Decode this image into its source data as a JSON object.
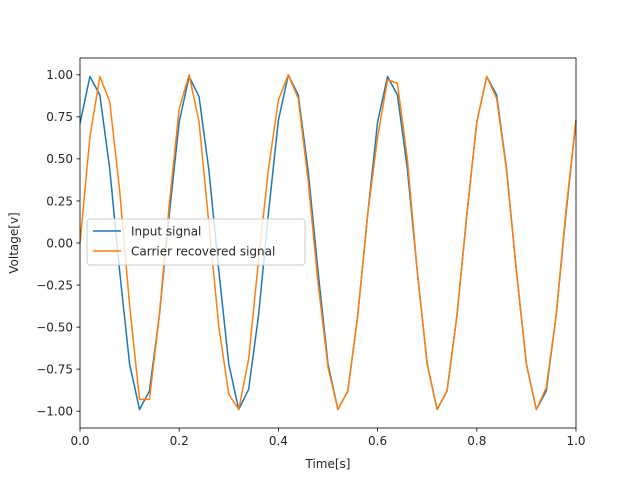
{
  "chart_data": {
    "type": "line",
    "title": "",
    "xlabel": "Time[s]",
    "ylabel": "Voltage[v]",
    "xlim": [
      0,
      1
    ],
    "ylim": [
      -1.1,
      1.1
    ],
    "xticks": [
      0,
      0.2,
      0.4,
      0.6,
      0.8,
      1.0
    ],
    "xtick_labels": [
      "0.0",
      "0.2",
      "0.4",
      "0.6",
      "0.8",
      "1.0"
    ],
    "yticks": [
      -1.0,
      -0.75,
      -0.5,
      -0.25,
      0.0,
      0.25,
      0.5,
      0.75,
      1.0
    ],
    "ytick_labels": [
      "−1.00",
      "−0.75",
      "−0.50",
      "−0.25",
      "0.00",
      "0.25",
      "0.50",
      "0.75",
      "1.00"
    ],
    "grid": false,
    "legend_position": "center-left",
    "series": [
      {
        "name": "Input signal",
        "color": "#1f77b4",
        "x": [
          0,
          0.02,
          0.04,
          0.06,
          0.08,
          0.1,
          0.12,
          0.14,
          0.16,
          0.18,
          0.2,
          0.22,
          0.24,
          0.26,
          0.28,
          0.3,
          0.32,
          0.34,
          0.36,
          0.38,
          0.4,
          0.42,
          0.44,
          0.46,
          0.48,
          0.5,
          0.52,
          0.54,
          0.56,
          0.58,
          0.6,
          0.62,
          0.64,
          0.66,
          0.68,
          0.7,
          0.72,
          0.74,
          0.76,
          0.78,
          0.8,
          0.82,
          0.84,
          0.86,
          0.88,
          0.9,
          0.92,
          0.94,
          0.96,
          0.98,
          1.0
        ],
        "y": [
          0.71,
          0.99,
          0.88,
          0.44,
          -0.17,
          -0.72,
          -0.99,
          -0.88,
          -0.43,
          0.17,
          0.72,
          0.99,
          0.87,
          0.43,
          -0.17,
          -0.72,
          -0.99,
          -0.87,
          -0.43,
          0.18,
          0.73,
          1.0,
          0.88,
          0.43,
          -0.17,
          -0.72,
          -0.99,
          -0.88,
          -0.43,
          0.17,
          0.72,
          0.99,
          0.88,
          0.44,
          -0.17,
          -0.72,
          -0.99,
          -0.88,
          -0.43,
          0.17,
          0.72,
          0.99,
          0.88,
          0.44,
          -0.17,
          -0.72,
          -0.99,
          -0.88,
          -0.43,
          0.18,
          0.73
        ]
      },
      {
        "name": "Carrier recovered signal",
        "color": "#ff7f0e",
        "x": [
          0,
          0.02,
          0.04,
          0.06,
          0.08,
          0.1,
          0.12,
          0.14,
          0.16,
          0.18,
          0.2,
          0.22,
          0.24,
          0.26,
          0.28,
          0.3,
          0.32,
          0.34,
          0.36,
          0.38,
          0.4,
          0.42,
          0.44,
          0.46,
          0.48,
          0.5,
          0.52,
          0.54,
          0.56,
          0.58,
          0.6,
          0.62,
          0.64,
          0.66,
          0.68,
          0.7,
          0.72,
          0.74,
          0.76,
          0.78,
          0.8,
          0.82,
          0.84,
          0.86,
          0.88,
          0.9,
          0.92,
          0.94,
          0.96,
          0.98,
          1.0
        ],
        "y": [
          0.0,
          0.63,
          0.99,
          0.84,
          0.31,
          -0.37,
          -0.93,
          -0.93,
          -0.43,
          0.23,
          0.8,
          1.0,
          0.72,
          0.11,
          -0.5,
          -0.9,
          -0.99,
          -0.69,
          -0.1,
          0.44,
          0.85,
          1.0,
          0.86,
          0.37,
          -0.24,
          -0.74,
          -0.99,
          -0.88,
          -0.43,
          0.17,
          0.63,
          0.97,
          0.95,
          0.5,
          -0.17,
          -0.72,
          -0.99,
          -0.88,
          -0.43,
          0.17,
          0.72,
          0.99,
          0.86,
          0.43,
          -0.17,
          -0.72,
          -0.99,
          -0.86,
          -0.43,
          0.2,
          0.73
        ]
      }
    ]
  }
}
